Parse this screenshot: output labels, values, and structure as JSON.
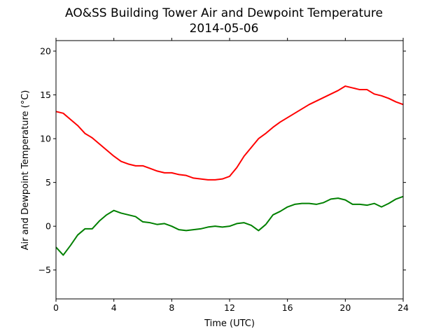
{
  "chart_data": {
    "type": "line",
    "title": "AO&SS Building Tower Air and Dewpoint Temperature",
    "subtitle": "2014-05-06",
    "xlabel": "Time (UTC)",
    "ylabel": "Air and Dewpoint Temperature (°C)",
    "xlim": [
      0,
      24
    ],
    "ylim": [
      -8.3,
      21.2
    ],
    "x_ticks": [
      0,
      4,
      8,
      12,
      16,
      20,
      24
    ],
    "x_tick_labels": [
      "0",
      "4",
      "8",
      "12",
      "16",
      "20",
      "24"
    ],
    "y_ticks": [
      -5,
      0,
      5,
      10,
      15,
      20
    ],
    "y_tick_labels": [
      "−5",
      "0",
      "5",
      "10",
      "15",
      "20"
    ],
    "grid": false,
    "legend": false,
    "series": [
      {
        "color": "#ff0000",
        "x": [
          0,
          0.5,
          1,
          1.5,
          2,
          2.5,
          3,
          3.5,
          4,
          4.5,
          5,
          5.5,
          6,
          6.5,
          7,
          7.5,
          8,
          8.5,
          9,
          9.5,
          10,
          10.5,
          11,
          11.5,
          12,
          12.5,
          13,
          13.5,
          14,
          14.5,
          15,
          15.5,
          16,
          16.5,
          17,
          17.5,
          18,
          18.5,
          19,
          19.5,
          20,
          20.5,
          21,
          21.5,
          22,
          22.5,
          23,
          23.5,
          24
        ],
        "y": [
          13.1,
          12.9,
          12.2,
          11.5,
          10.6,
          10.1,
          9.4,
          8.7,
          8.0,
          7.4,
          7.1,
          6.9,
          6.9,
          6.6,
          6.3,
          6.1,
          6.1,
          5.9,
          5.8,
          5.5,
          5.4,
          5.3,
          5.3,
          5.4,
          5.7,
          6.7,
          8.0,
          9.0,
          10.0,
          10.6,
          11.3,
          11.9,
          12.4,
          12.9,
          13.4,
          13.9,
          14.3,
          14.7,
          15.1,
          15.5,
          16.0,
          15.8,
          15.6,
          15.6,
          15.1,
          14.9,
          14.6,
          14.2,
          13.9
        ]
      },
      {
        "color": "#008000",
        "x": [
          0,
          0.5,
          1,
          1.5,
          2,
          2.5,
          3,
          3.5,
          4,
          4.5,
          5,
          5.5,
          6,
          6.5,
          7,
          7.5,
          8,
          8.5,
          9,
          9.5,
          10,
          10.5,
          11,
          11.5,
          12,
          12.5,
          13,
          13.5,
          14,
          14.5,
          15,
          15.5,
          16,
          16.5,
          17,
          17.5,
          18,
          18.5,
          19,
          19.5,
          20,
          20.5,
          21,
          21.5,
          22,
          22.5,
          23,
          23.5,
          24
        ],
        "y": [
          -2.4,
          -3.3,
          -2.2,
          -1.0,
          -0.3,
          -0.3,
          0.6,
          1.3,
          1.8,
          1.5,
          1.3,
          1.1,
          0.5,
          0.4,
          0.2,
          0.3,
          0.0,
          -0.4,
          -0.5,
          -0.4,
          -0.3,
          -0.1,
          0.0,
          -0.1,
          0.0,
          0.3,
          0.4,
          0.1,
          -0.5,
          0.2,
          1.3,
          1.7,
          2.2,
          2.5,
          2.6,
          2.6,
          2.5,
          2.7,
          3.1,
          3.2,
          3.0,
          2.5,
          2.5,
          2.4,
          2.6,
          2.2,
          2.6,
          3.1,
          3.4
        ]
      }
    ]
  }
}
